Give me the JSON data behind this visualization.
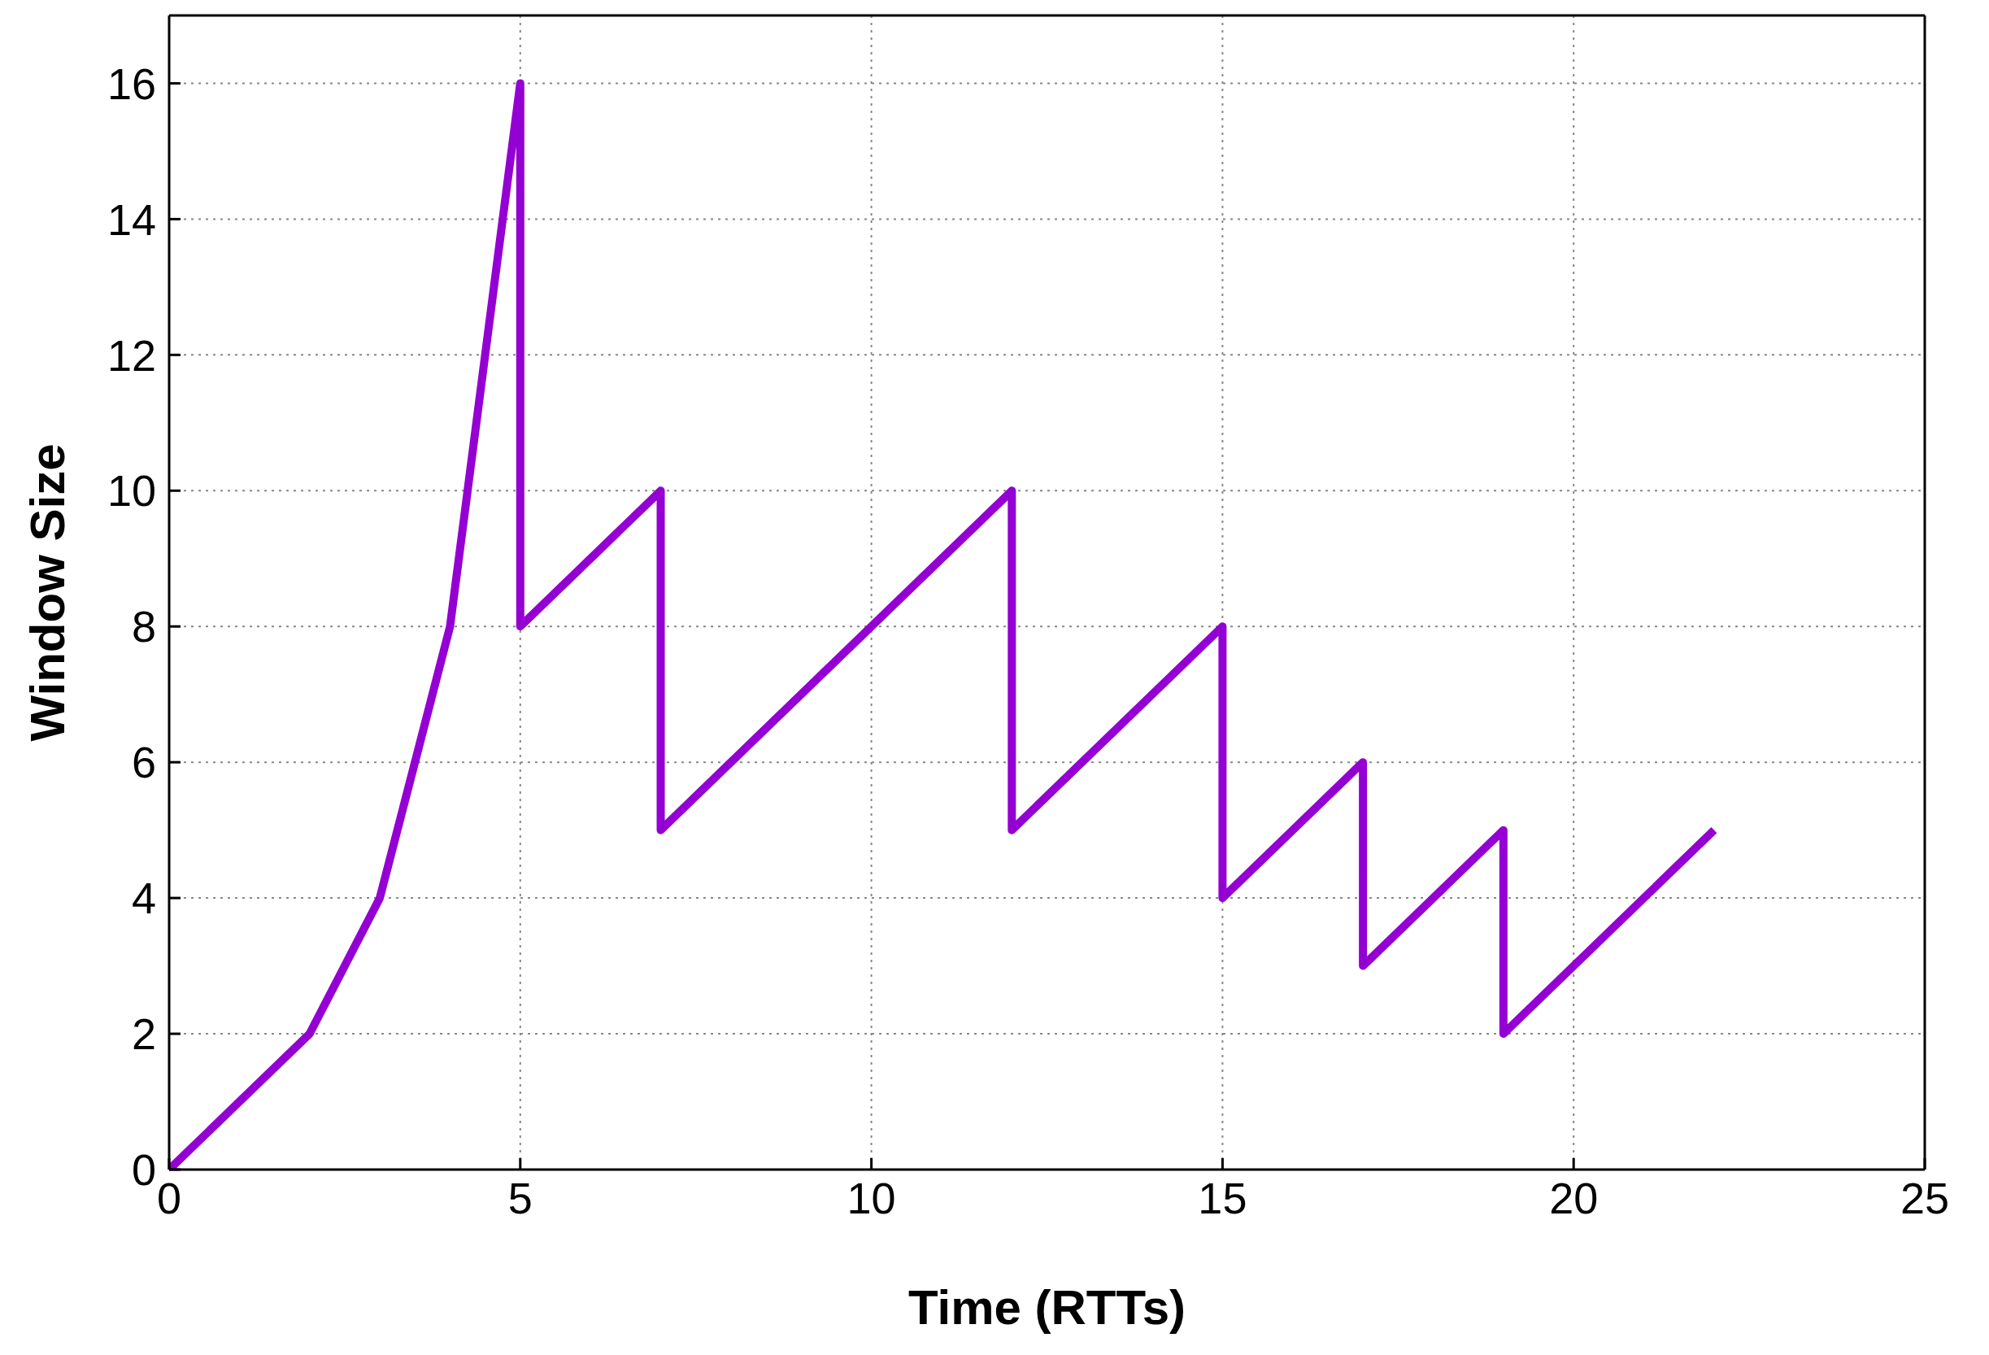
{
  "chart_data": {
    "type": "line",
    "xlabel": "Time (RTTs)",
    "ylabel": "Window Size",
    "x": [
      0,
      2,
      3,
      4,
      5,
      5,
      7,
      7,
      12,
      12,
      15,
      15,
      17,
      17,
      19,
      19,
      22
    ],
    "values": [
      0,
      2,
      4,
      8,
      16,
      8,
      10,
      5,
      10,
      5,
      8,
      4,
      6,
      3,
      5,
      2,
      5
    ],
    "color": "#9400d3",
    "xlim": [
      0,
      25
    ],
    "ylim": [
      0,
      17
    ],
    "xticks": [
      0,
      5,
      10,
      15,
      20,
      25
    ],
    "yticks": [
      0,
      2,
      4,
      6,
      8,
      10,
      12,
      14,
      16
    ],
    "grid": true,
    "marker": "none",
    "line_style": "solid"
  }
}
